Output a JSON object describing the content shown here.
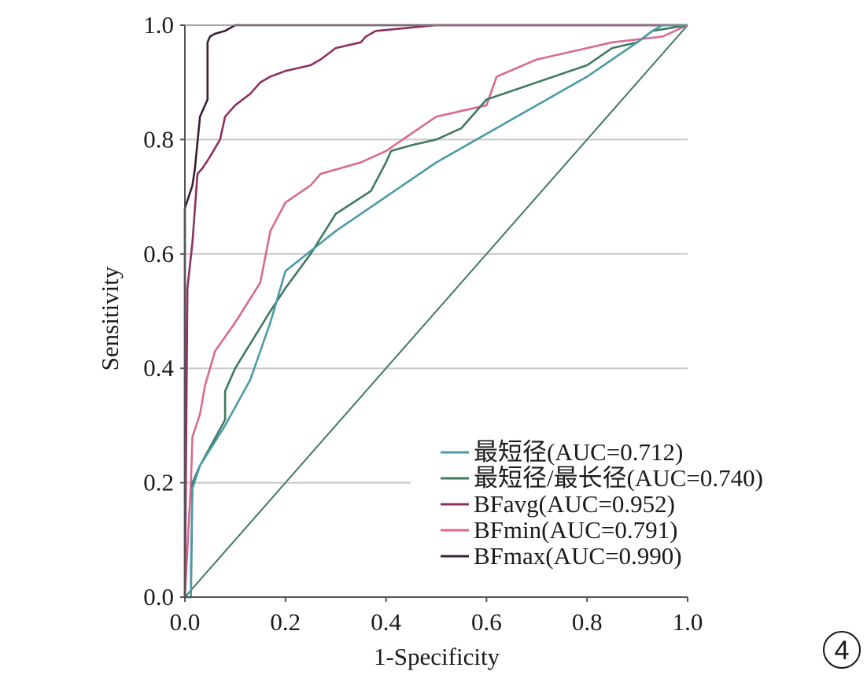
{
  "chart_data": {
    "type": "line",
    "xlabel": "1-Specificity",
    "ylabel": "Sensitivity",
    "xlim": [
      0.0,
      1.0
    ],
    "ylim": [
      0.0,
      1.0
    ],
    "xticks": [
      "0.0",
      "0.2",
      "0.4",
      "0.6",
      "0.8",
      "1.0"
    ],
    "yticks": [
      "0.0",
      "0.2",
      "0.4",
      "0.6",
      "0.8",
      "1.0"
    ],
    "grid": "horizontal",
    "legend_position": "bottom-right",
    "panel_label": "4",
    "series": [
      {
        "name": "最短径(AUC=0.712)",
        "color": "#4a9aa8",
        "points": [
          [
            0.0,
            0.0
          ],
          [
            0.012,
            0.0
          ],
          [
            0.012,
            0.05
          ],
          [
            0.015,
            0.19
          ],
          [
            0.03,
            0.23
          ],
          [
            0.08,
            0.3
          ],
          [
            0.13,
            0.38
          ],
          [
            0.17,
            0.48
          ],
          [
            0.2,
            0.57
          ],
          [
            0.3,
            0.64
          ],
          [
            0.4,
            0.7
          ],
          [
            0.5,
            0.76
          ],
          [
            0.6,
            0.81
          ],
          [
            0.7,
            0.86
          ],
          [
            0.8,
            0.91
          ],
          [
            0.9,
            0.97
          ],
          [
            0.93,
            0.99
          ],
          [
            0.95,
            1.0
          ],
          [
            1.0,
            1.0
          ]
        ]
      },
      {
        "name": "最短径/最长径(AUC=0.740)",
        "color": "#3f7a5e",
        "points": [
          [
            0.0,
            0.0
          ],
          [
            0.012,
            0.0
          ],
          [
            0.015,
            0.2
          ],
          [
            0.03,
            0.23
          ],
          [
            0.08,
            0.31
          ],
          [
            0.08,
            0.36
          ],
          [
            0.1,
            0.4
          ],
          [
            0.17,
            0.5
          ],
          [
            0.2,
            0.54
          ],
          [
            0.25,
            0.6
          ],
          [
            0.3,
            0.67
          ],
          [
            0.37,
            0.71
          ],
          [
            0.4,
            0.76
          ],
          [
            0.41,
            0.78
          ],
          [
            0.45,
            0.79
          ],
          [
            0.5,
            0.8
          ],
          [
            0.55,
            0.82
          ],
          [
            0.6,
            0.87
          ],
          [
            0.7,
            0.9
          ],
          [
            0.8,
            0.93
          ],
          [
            0.85,
            0.96
          ],
          [
            0.9,
            0.97
          ],
          [
            0.93,
            0.99
          ],
          [
            1.0,
            1.0
          ]
        ]
      },
      {
        "name": "BFavg(AUC=0.952)",
        "color": "#8e2f62",
        "points": [
          [
            0.0,
            0.0
          ],
          [
            0.005,
            0.54
          ],
          [
            0.015,
            0.62
          ],
          [
            0.025,
            0.74
          ],
          [
            0.035,
            0.75
          ],
          [
            0.05,
            0.77
          ],
          [
            0.07,
            0.8
          ],
          [
            0.08,
            0.84
          ],
          [
            0.1,
            0.86
          ],
          [
            0.13,
            0.88
          ],
          [
            0.15,
            0.9
          ],
          [
            0.17,
            0.91
          ],
          [
            0.2,
            0.92
          ],
          [
            0.25,
            0.93
          ],
          [
            0.27,
            0.94
          ],
          [
            0.3,
            0.96
          ],
          [
            0.35,
            0.97
          ],
          [
            0.36,
            0.98
          ],
          [
            0.38,
            0.99
          ],
          [
            0.5,
            1.0
          ],
          [
            1.0,
            1.0
          ]
        ]
      },
      {
        "name": "BFmin(AUC=0.791)",
        "color": "#d9698f",
        "points": [
          [
            0.0,
            0.0
          ],
          [
            0.012,
            0.2
          ],
          [
            0.015,
            0.28
          ],
          [
            0.03,
            0.32
          ],
          [
            0.04,
            0.37
          ],
          [
            0.06,
            0.43
          ],
          [
            0.1,
            0.48
          ],
          [
            0.15,
            0.55
          ],
          [
            0.17,
            0.64
          ],
          [
            0.2,
            0.69
          ],
          [
            0.25,
            0.72
          ],
          [
            0.27,
            0.74
          ],
          [
            0.35,
            0.76
          ],
          [
            0.4,
            0.78
          ],
          [
            0.45,
            0.81
          ],
          [
            0.5,
            0.84
          ],
          [
            0.6,
            0.86
          ],
          [
            0.62,
            0.91
          ],
          [
            0.7,
            0.94
          ],
          [
            0.8,
            0.96
          ],
          [
            0.85,
            0.97
          ],
          [
            0.95,
            0.98
          ],
          [
            1.0,
            1.0
          ]
        ]
      },
      {
        "name": "BFmax(AUC=0.990)",
        "color": "#3d1f33",
        "points": [
          [
            0.0,
            0.0
          ],
          [
            0.0,
            0.68
          ],
          [
            0.015,
            0.72
          ],
          [
            0.02,
            0.75
          ],
          [
            0.03,
            0.84
          ],
          [
            0.045,
            0.87
          ],
          [
            0.045,
            0.97
          ],
          [
            0.05,
            0.98
          ],
          [
            0.06,
            0.985
          ],
          [
            0.08,
            0.99
          ],
          [
            0.1,
            1.0
          ],
          [
            1.0,
            1.0
          ]
        ]
      },
      {
        "name": "",
        "color": "#3f7a5e",
        "points": [
          [
            0.0,
            0.0
          ],
          [
            1.0,
            1.0
          ]
        ]
      }
    ]
  }
}
